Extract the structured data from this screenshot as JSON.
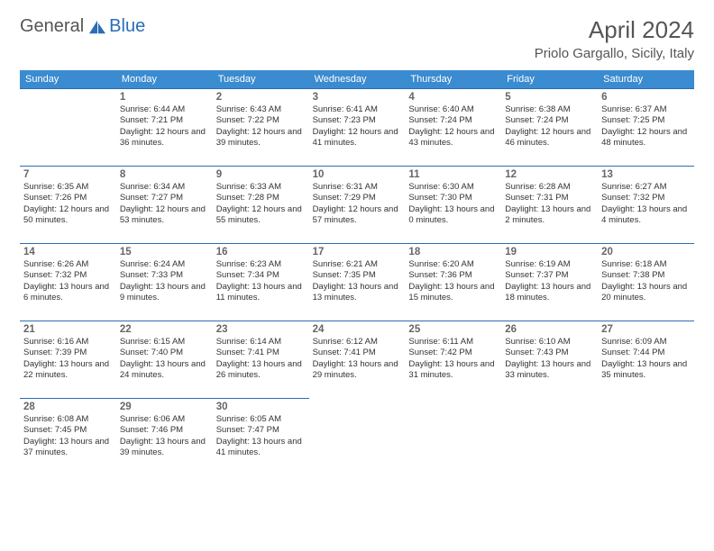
{
  "logo": {
    "general": "General",
    "blue": "Blue"
  },
  "title": "April 2024",
  "location": "Priolo Gargallo, Sicily, Italy",
  "colors": {
    "header_bg": "#3b8bd0",
    "border": "#2a6db8",
    "text_dark": "#333333",
    "text_mid": "#555555",
    "weekday_text": "#ffffff"
  },
  "weekdays": [
    "Sunday",
    "Monday",
    "Tuesday",
    "Wednesday",
    "Thursday",
    "Friday",
    "Saturday"
  ],
  "leading_blanks": 1,
  "days": [
    {
      "n": 1,
      "sunrise": "6:44 AM",
      "sunset": "7:21 PM",
      "daylight": "12 hours and 36 minutes."
    },
    {
      "n": 2,
      "sunrise": "6:43 AM",
      "sunset": "7:22 PM",
      "daylight": "12 hours and 39 minutes."
    },
    {
      "n": 3,
      "sunrise": "6:41 AM",
      "sunset": "7:23 PM",
      "daylight": "12 hours and 41 minutes."
    },
    {
      "n": 4,
      "sunrise": "6:40 AM",
      "sunset": "7:24 PM",
      "daylight": "12 hours and 43 minutes."
    },
    {
      "n": 5,
      "sunrise": "6:38 AM",
      "sunset": "7:24 PM",
      "daylight": "12 hours and 46 minutes."
    },
    {
      "n": 6,
      "sunrise": "6:37 AM",
      "sunset": "7:25 PM",
      "daylight": "12 hours and 48 minutes."
    },
    {
      "n": 7,
      "sunrise": "6:35 AM",
      "sunset": "7:26 PM",
      "daylight": "12 hours and 50 minutes."
    },
    {
      "n": 8,
      "sunrise": "6:34 AM",
      "sunset": "7:27 PM",
      "daylight": "12 hours and 53 minutes."
    },
    {
      "n": 9,
      "sunrise": "6:33 AM",
      "sunset": "7:28 PM",
      "daylight": "12 hours and 55 minutes."
    },
    {
      "n": 10,
      "sunrise": "6:31 AM",
      "sunset": "7:29 PM",
      "daylight": "12 hours and 57 minutes."
    },
    {
      "n": 11,
      "sunrise": "6:30 AM",
      "sunset": "7:30 PM",
      "daylight": "13 hours and 0 minutes."
    },
    {
      "n": 12,
      "sunrise": "6:28 AM",
      "sunset": "7:31 PM",
      "daylight": "13 hours and 2 minutes."
    },
    {
      "n": 13,
      "sunrise": "6:27 AM",
      "sunset": "7:32 PM",
      "daylight": "13 hours and 4 minutes."
    },
    {
      "n": 14,
      "sunrise": "6:26 AM",
      "sunset": "7:32 PM",
      "daylight": "13 hours and 6 minutes."
    },
    {
      "n": 15,
      "sunrise": "6:24 AM",
      "sunset": "7:33 PM",
      "daylight": "13 hours and 9 minutes."
    },
    {
      "n": 16,
      "sunrise": "6:23 AM",
      "sunset": "7:34 PM",
      "daylight": "13 hours and 11 minutes."
    },
    {
      "n": 17,
      "sunrise": "6:21 AM",
      "sunset": "7:35 PM",
      "daylight": "13 hours and 13 minutes."
    },
    {
      "n": 18,
      "sunrise": "6:20 AM",
      "sunset": "7:36 PM",
      "daylight": "13 hours and 15 minutes."
    },
    {
      "n": 19,
      "sunrise": "6:19 AM",
      "sunset": "7:37 PM",
      "daylight": "13 hours and 18 minutes."
    },
    {
      "n": 20,
      "sunrise": "6:18 AM",
      "sunset": "7:38 PM",
      "daylight": "13 hours and 20 minutes."
    },
    {
      "n": 21,
      "sunrise": "6:16 AM",
      "sunset": "7:39 PM",
      "daylight": "13 hours and 22 minutes."
    },
    {
      "n": 22,
      "sunrise": "6:15 AM",
      "sunset": "7:40 PM",
      "daylight": "13 hours and 24 minutes."
    },
    {
      "n": 23,
      "sunrise": "6:14 AM",
      "sunset": "7:41 PM",
      "daylight": "13 hours and 26 minutes."
    },
    {
      "n": 24,
      "sunrise": "6:12 AM",
      "sunset": "7:41 PM",
      "daylight": "13 hours and 29 minutes."
    },
    {
      "n": 25,
      "sunrise": "6:11 AM",
      "sunset": "7:42 PM",
      "daylight": "13 hours and 31 minutes."
    },
    {
      "n": 26,
      "sunrise": "6:10 AM",
      "sunset": "7:43 PM",
      "daylight": "13 hours and 33 minutes."
    },
    {
      "n": 27,
      "sunrise": "6:09 AM",
      "sunset": "7:44 PM",
      "daylight": "13 hours and 35 minutes."
    },
    {
      "n": 28,
      "sunrise": "6:08 AM",
      "sunset": "7:45 PM",
      "daylight": "13 hours and 37 minutes."
    },
    {
      "n": 29,
      "sunrise": "6:06 AM",
      "sunset": "7:46 PM",
      "daylight": "13 hours and 39 minutes."
    },
    {
      "n": 30,
      "sunrise": "6:05 AM",
      "sunset": "7:47 PM",
      "daylight": "13 hours and 41 minutes."
    }
  ],
  "labels": {
    "sunrise": "Sunrise:",
    "sunset": "Sunset:",
    "daylight": "Daylight:"
  }
}
